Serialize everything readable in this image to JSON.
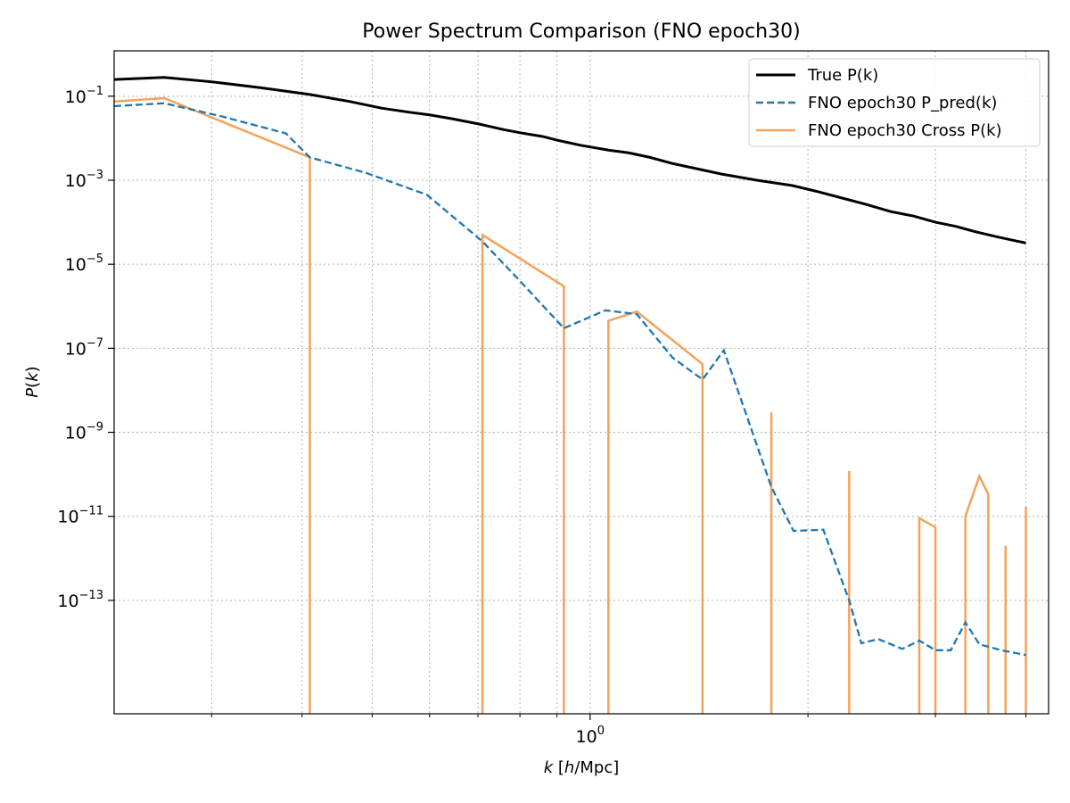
{
  "chart_data": {
    "type": "line",
    "title": "Power Spectrum Comparison (FNO epoch30)",
    "xlabel_parts": [
      "k",
      " [",
      "h",
      "/Mpc]"
    ],
    "ylabel_parts": [
      "P",
      "(",
      "k",
      ")"
    ],
    "x_scale": "log",
    "y_scale": "log",
    "xlim": [
      0.22,
      4.3
    ],
    "ylim": [
      2e-16,
      1.2
    ],
    "grid": true,
    "legend_position": "top-right",
    "x_ticks": [
      {
        "value": 1.0,
        "mantissa": "10",
        "exponent": "0"
      }
    ],
    "x_minor_ticks": [
      0.3,
      0.4,
      0.5,
      0.6,
      0.7,
      0.8,
      0.9,
      2,
      3,
      4
    ],
    "y_ticks": [
      {
        "value": 1e-13,
        "mantissa": "10",
        "exponent": "−13"
      },
      {
        "value": 1e-11,
        "mantissa": "10",
        "exponent": "−11"
      },
      {
        "value": 1e-09,
        "mantissa": "10",
        "exponent": "−9"
      },
      {
        "value": 1e-07,
        "mantissa": "10",
        "exponent": "−7"
      },
      {
        "value": 1e-05,
        "mantissa": "10",
        "exponent": "−5"
      },
      {
        "value": 0.001,
        "mantissa": "10",
        "exponent": "−3"
      },
      {
        "value": 0.1,
        "mantissa": "10",
        "exponent": "−1"
      }
    ],
    "series": [
      {
        "name": "True P(k)",
        "color": "#000000",
        "style": "solid",
        "points": [
          [
            0.22,
            0.25
          ],
          [
            0.258,
            0.28
          ],
          [
            0.3,
            0.22
          ],
          [
            0.35,
            0.16
          ],
          [
            0.41,
            0.11
          ],
          [
            0.465,
            0.075
          ],
          [
            0.515,
            0.052
          ],
          [
            0.56,
            0.042
          ],
          [
            0.6,
            0.036
          ],
          [
            0.645,
            0.029
          ],
          [
            0.7,
            0.022
          ],
          [
            0.76,
            0.016
          ],
          [
            0.81,
            0.013
          ],
          [
            0.86,
            0.011
          ],
          [
            0.9,
            0.009
          ],
          [
            0.97,
            0.0068
          ],
          [
            1.06,
            0.0052
          ],
          [
            1.13,
            0.0045
          ],
          [
            1.21,
            0.0035
          ],
          [
            1.3,
            0.0025
          ],
          [
            1.4,
            0.0019
          ],
          [
            1.52,
            0.0014
          ],
          [
            1.7,
            0.001
          ],
          [
            1.9,
            0.00075
          ],
          [
            2.05,
            0.00055
          ],
          [
            2.2,
            0.0004
          ],
          [
            2.4,
            0.00027
          ],
          [
            2.6,
            0.00018
          ],
          [
            2.8,
            0.00014
          ],
          [
            3.0,
            0.0001
          ],
          [
            3.2,
            8e-05
          ],
          [
            3.4,
            6e-05
          ],
          [
            3.65,
            4.5e-05
          ],
          [
            4.0,
            3.2e-05
          ]
        ]
      },
      {
        "name": "FNO epoch30 P_pred(k)",
        "color": "#1f77b4",
        "style": "dashed",
        "points": [
          [
            0.22,
            0.058
          ],
          [
            0.258,
            0.068
          ],
          [
            0.31,
            0.033
          ],
          [
            0.38,
            0.013
          ],
          [
            0.41,
            0.0035
          ],
          [
            0.49,
            0.0015
          ],
          [
            0.595,
            0.00045
          ],
          [
            0.71,
            3.5e-05
          ],
          [
            0.8,
            4e-06
          ],
          [
            0.92,
            3e-07
          ],
          [
            1.05,
            8e-07
          ],
          [
            1.16,
            6.5e-07
          ],
          [
            1.3,
            6e-08
          ],
          [
            1.43,
            1.8e-08
          ],
          [
            1.53,
            9e-08
          ],
          [
            1.63,
            4e-09
          ],
          [
            1.78,
            5e-11
          ],
          [
            1.91,
            4.5e-12
          ],
          [
            2.1,
            4.8e-12
          ],
          [
            2.28,
            1e-13
          ],
          [
            2.37,
            9.5e-15
          ],
          [
            2.5,
            1.2e-14
          ],
          [
            2.7,
            7e-15
          ],
          [
            2.85,
            1.1e-14
          ],
          [
            3.0,
            6.5e-15
          ],
          [
            3.15,
            6.5e-15
          ],
          [
            3.3,
            3e-14
          ],
          [
            3.45,
            9e-15
          ],
          [
            3.7,
            6.5e-15
          ],
          [
            4.0,
            5e-15
          ]
        ]
      },
      {
        "name": "FNO epoch30 Cross P(k)",
        "color": "#f4a259",
        "style": "solid",
        "segments": [
          [
            [
              0.22,
              0.075
            ],
            [
              0.258,
              0.09
            ],
            [
              0.41,
              0.0035
            ],
            [
              0.41,
              2e-16
            ]
          ],
          [
            [
              0.71,
              2e-16
            ],
            [
              0.71,
              5e-05
            ],
            [
              0.92,
              3e-06
            ],
            [
              0.92,
              2e-16
            ]
          ],
          [
            [
              1.06,
              2e-16
            ],
            [
              1.06,
              4.5e-07
            ],
            [
              1.16,
              7.5e-07
            ],
            [
              1.43,
              4.2e-08
            ],
            [
              1.43,
              2e-16
            ]
          ],
          [
            [
              1.78,
              2e-16
            ],
            [
              1.78,
              3e-09
            ],
            [
              1.78,
              2e-16
            ]
          ],
          [
            [
              2.28,
              2e-16
            ],
            [
              2.28,
              1.2e-10
            ],
            [
              2.28,
              2e-16
            ]
          ],
          [
            [
              2.85,
              2e-16
            ],
            [
              2.85,
              9e-12
            ],
            [
              3.0,
              5.5e-12
            ],
            [
              3.0,
              2e-16
            ]
          ],
          [
            [
              3.3,
              2e-16
            ],
            [
              3.3,
              1e-11
            ],
            [
              3.45,
              9e-11
            ],
            [
              3.55,
              3.3e-11
            ],
            [
              3.55,
              2e-16
            ]
          ],
          [
            [
              3.75,
              2e-16
            ],
            [
              3.75,
              2e-12
            ],
            [
              3.75,
              2e-16
            ]
          ],
          [
            [
              4.0,
              2e-16
            ],
            [
              4.0,
              1.7e-11
            ],
            [
              4.0,
              2e-16
            ]
          ]
        ]
      }
    ]
  }
}
